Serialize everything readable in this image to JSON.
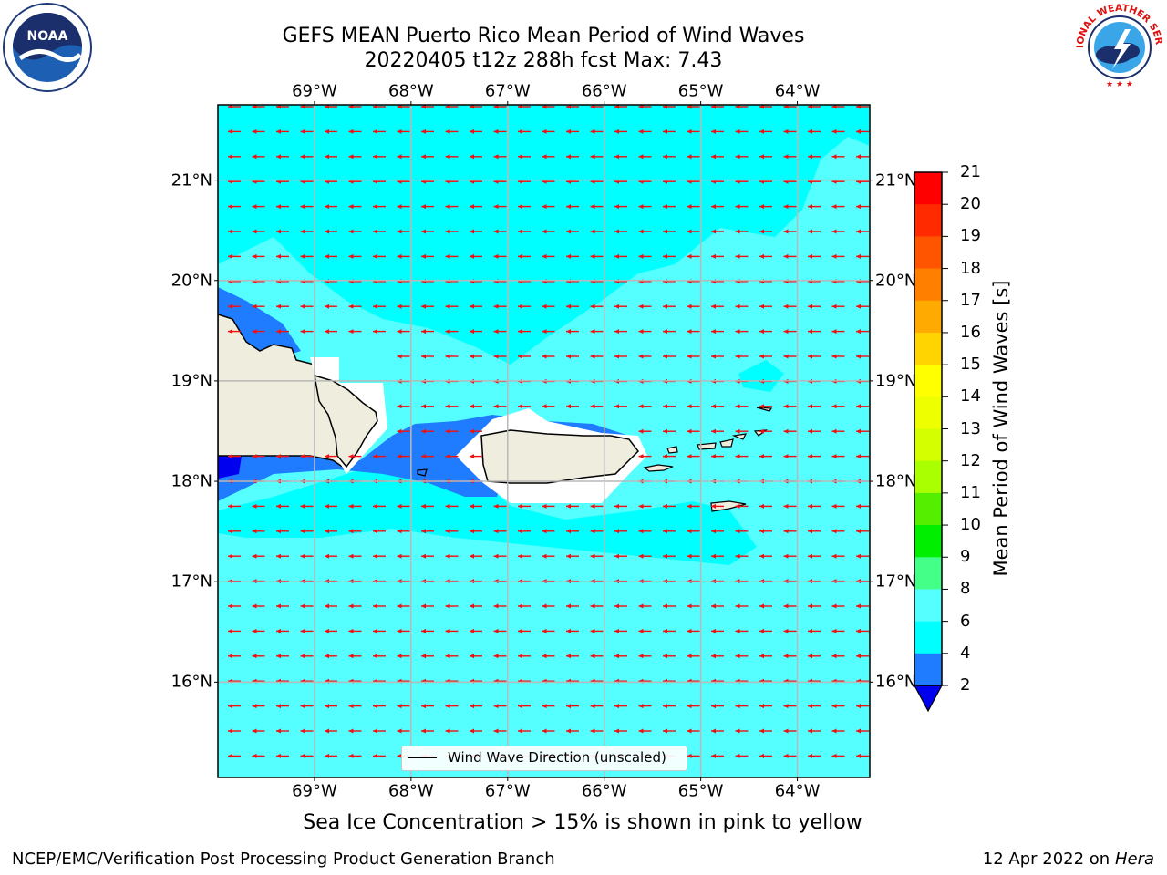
{
  "title_line1": "GEFS MEAN Puerto Rico Mean Period of Wind Waves",
  "title_line2": "20220405 t12z 288h fcst   Max: 7.43",
  "caption": "Sea Ice Concentration > 15% is shown in pink to yellow",
  "footer_left": "NCEP/EMC/Verification Post Processing Product Generation Branch",
  "footer_date": "12 Apr 2022 on",
  "footer_host": "Hera",
  "legend": {
    "label": "Wind Wave Direction (unscaled)"
  },
  "logos": {
    "left": "NOAA",
    "right": "NATIONAL WEATHER SERVICE"
  },
  "map": {
    "lon_ticks": [
      "69°W",
      "68°W",
      "67°W",
      "66°W",
      "65°W",
      "64°W"
    ],
    "lat_ticks": [
      "21°N",
      "20°N",
      "19°N",
      "18°N",
      "17°N",
      "16°N"
    ],
    "lon_values": [
      -69,
      -68,
      -67,
      -66,
      -65,
      -64
    ],
    "lat_values": [
      21,
      20,
      19,
      18,
      17,
      16
    ],
    "extent": {
      "lon_min": -70,
      "lon_max": -63.25,
      "lat_min": 15.05,
      "lat_max": 21.75
    },
    "colors": {
      "background": "#55ffff",
      "light": "#00ffff",
      "dark": "#1f7cff",
      "darkest": "#0000ee",
      "land": "#efedde",
      "arrow": "#ee1111",
      "grid": "#b8b8b8"
    },
    "wave_direction": "toward west (east wind)"
  },
  "colorbar": {
    "label": "Mean Period of Wind Waves [s]",
    "ticks": [
      "21",
      "20",
      "19",
      "18",
      "17",
      "16",
      "15",
      "14",
      "13",
      "12",
      "11",
      "10",
      "9",
      "8",
      "6",
      "4",
      "2"
    ],
    "colors": [
      "#ff0000",
      "#ff2a00",
      "#ff5500",
      "#ff8000",
      "#ffaa00",
      "#ffd400",
      "#ffff00",
      "#eeff00",
      "#d4ff00",
      "#aaff00",
      "#55ee00",
      "#00ee00",
      "#44ff88",
      "#88ffcc",
      "#aaffff",
      "#55ffff",
      "#00ffff",
      "#1f7cff"
    ],
    "extend_color": "#0000ee"
  }
}
